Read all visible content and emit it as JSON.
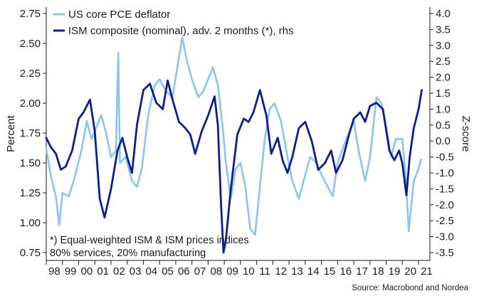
{
  "chart_data": {
    "type": "line",
    "legend_position": "top-left",
    "grid": false,
    "y_left": {
      "label": "Percent",
      "range": [
        0.75,
        2.75
      ],
      "ticks": [
        "2.75",
        "2.50",
        "2.25",
        "2.00",
        "1.75",
        "1.50",
        "1.25",
        "1.00",
        "0.75"
      ]
    },
    "y_right": {
      "label": "Z-score",
      "range": [
        -3.5,
        4.0
      ],
      "ticks": [
        "4.0",
        "3.5",
        "3.0",
        "2.5",
        "2.0",
        "1.5",
        "1.0",
        "0.5",
        "0.0",
        "-0.5",
        "-1.0",
        "-1.5",
        "-2.0",
        "-2.5",
        "-3.0",
        "-3.5"
      ]
    },
    "x_axis": {
      "range": [
        1998.0,
        2021.7
      ],
      "tick_labels": [
        "98",
        "99",
        "00",
        "01",
        "02",
        "03",
        "04",
        "05",
        "06",
        "07",
        "08",
        "09",
        "10",
        "11",
        "12",
        "13",
        "14",
        "15",
        "16",
        "17",
        "18",
        "19",
        "20",
        "21"
      ]
    },
    "series": [
      {
        "name": "US core PCE deflator",
        "axis": "left",
        "color": "#8cc4ec",
        "points": [
          [
            1998.0,
            1.62
          ],
          [
            1998.3,
            1.38
          ],
          [
            1998.6,
            1.22
          ],
          [
            1998.8,
            0.98
          ],
          [
            1999.0,
            1.25
          ],
          [
            1999.4,
            1.22
          ],
          [
            1999.8,
            1.4
          ],
          [
            2000.2,
            1.62
          ],
          [
            2000.5,
            1.85
          ],
          [
            2000.8,
            1.7
          ],
          [
            2001.1,
            1.8
          ],
          [
            2001.4,
            1.9
          ],
          [
            2001.7,
            1.75
          ],
          [
            2002.0,
            1.55
          ],
          [
            2002.3,
            1.6
          ],
          [
            2002.45,
            2.42
          ],
          [
            2002.55,
            1.5
          ],
          [
            2002.9,
            1.55
          ],
          [
            2003.3,
            1.35
          ],
          [
            2003.6,
            1.3
          ],
          [
            2003.9,
            1.45
          ],
          [
            2004.3,
            1.9
          ],
          [
            2004.7,
            2.15
          ],
          [
            2005.0,
            2.2
          ],
          [
            2005.4,
            2.1
          ],
          [
            2005.8,
            2.05
          ],
          [
            2006.1,
            2.3
          ],
          [
            2006.4,
            2.55
          ],
          [
            2006.7,
            2.35
          ],
          [
            2007.0,
            2.2
          ],
          [
            2007.4,
            2.05
          ],
          [
            2007.7,
            2.1
          ],
          [
            2008.0,
            2.2
          ],
          [
            2008.3,
            2.3
          ],
          [
            2008.6,
            2.15
          ],
          [
            2008.9,
            1.8
          ],
          [
            2009.1,
            1.5
          ],
          [
            2009.4,
            1.2
          ],
          [
            2009.7,
            1.45
          ],
          [
            2010.0,
            1.5
          ],
          [
            2010.3,
            1.3
          ],
          [
            2010.6,
            0.95
          ],
          [
            2010.9,
            0.9
          ],
          [
            2011.2,
            1.3
          ],
          [
            2011.5,
            1.7
          ],
          [
            2011.8,
            1.95
          ],
          [
            2012.1,
            2.0
          ],
          [
            2012.5,
            1.85
          ],
          [
            2012.9,
            1.55
          ],
          [
            2013.2,
            1.35
          ],
          [
            2013.6,
            1.2
          ],
          [
            2013.9,
            1.35
          ],
          [
            2014.3,
            1.55
          ],
          [
            2014.7,
            1.5
          ],
          [
            2015.0,
            1.4
          ],
          [
            2015.4,
            1.3
          ],
          [
            2015.7,
            1.22
          ],
          [
            2016.0,
            1.5
          ],
          [
            2016.4,
            1.65
          ],
          [
            2016.7,
            1.75
          ],
          [
            2017.0,
            1.85
          ],
          [
            2017.3,
            1.6
          ],
          [
            2017.7,
            1.35
          ],
          [
            2018.0,
            1.55
          ],
          [
            2018.4,
            2.05
          ],
          [
            2018.7,
            2.0
          ],
          [
            2019.0,
            1.8
          ],
          [
            2019.3,
            1.55
          ],
          [
            2019.6,
            1.7
          ],
          [
            2020.0,
            1.7
          ],
          [
            2020.2,
            1.4
          ],
          [
            2020.4,
            0.93
          ],
          [
            2020.7,
            1.35
          ],
          [
            2021.0,
            1.45
          ],
          [
            2021.15,
            1.53
          ]
        ]
      },
      {
        "name": "ISM composite (nominal), adv. 2 months (*), rhs",
        "axis": "right",
        "color": "#0f1e8c",
        "points": [
          [
            1998.0,
            0.1
          ],
          [
            1998.3,
            -0.2
          ],
          [
            1998.6,
            -0.4
          ],
          [
            1998.9,
            -0.9
          ],
          [
            1999.2,
            -0.8
          ],
          [
            1999.6,
            -0.3
          ],
          [
            2000.0,
            0.7
          ],
          [
            2000.3,
            0.9
          ],
          [
            2000.7,
            1.3
          ],
          [
            2001.0,
            0.3
          ],
          [
            2001.3,
            -1.8
          ],
          [
            2001.6,
            -2.4
          ],
          [
            2002.0,
            -1.5
          ],
          [
            2002.4,
            -0.3
          ],
          [
            2002.7,
            0.1
          ],
          [
            2003.0,
            -0.5
          ],
          [
            2003.3,
            -1.0
          ],
          [
            2003.6,
            0.5
          ],
          [
            2004.0,
            1.6
          ],
          [
            2004.4,
            1.8
          ],
          [
            2004.8,
            1.2
          ],
          [
            2005.2,
            1.0
          ],
          [
            2005.5,
            1.9
          ],
          [
            2005.8,
            1.3
          ],
          [
            2006.2,
            0.6
          ],
          [
            2006.6,
            0.4
          ],
          [
            2006.9,
            0.2
          ],
          [
            2007.2,
            -0.4
          ],
          [
            2007.6,
            0.3
          ],
          [
            2008.0,
            0.8
          ],
          [
            2008.4,
            1.4
          ],
          [
            2008.6,
            0.5
          ],
          [
            2008.8,
            -2.0
          ],
          [
            2008.95,
            -3.5
          ],
          [
            2009.1,
            -3.1
          ],
          [
            2009.4,
            -1.5
          ],
          [
            2009.8,
            0.2
          ],
          [
            2010.2,
            0.7
          ],
          [
            2010.5,
            0.6
          ],
          [
            2010.8,
            0.9
          ],
          [
            2011.2,
            1.6
          ],
          [
            2011.6,
            0.8
          ],
          [
            2011.9,
            -0.4
          ],
          [
            2012.3,
            0.1
          ],
          [
            2012.6,
            -0.6
          ],
          [
            2012.9,
            -1.0
          ],
          [
            2013.2,
            -0.5
          ],
          [
            2013.6,
            0.4
          ],
          [
            2014.0,
            0.6
          ],
          [
            2014.4,
            0.0
          ],
          [
            2014.8,
            -0.9
          ],
          [
            2015.2,
            -0.7
          ],
          [
            2015.6,
            -0.3
          ],
          [
            2015.9,
            -1.0
          ],
          [
            2016.3,
            -0.6
          ],
          [
            2016.7,
            0.2
          ],
          [
            2017.0,
            0.7
          ],
          [
            2017.4,
            0.9
          ],
          [
            2017.7,
            0.6
          ],
          [
            2018.0,
            1.1
          ],
          [
            2018.4,
            1.2
          ],
          [
            2018.8,
            1.0
          ],
          [
            2019.2,
            -0.3
          ],
          [
            2019.5,
            -0.6
          ],
          [
            2019.8,
            -0.3
          ],
          [
            2020.0,
            -0.7
          ],
          [
            2020.25,
            -1.7
          ],
          [
            2020.45,
            -0.5
          ],
          [
            2020.7,
            0.4
          ],
          [
            2021.0,
            1.0
          ],
          [
            2021.2,
            1.6
          ]
        ]
      }
    ],
    "annotations": [
      "*) Equal-weighted ISM & ISM prices indices",
      "80% services, 20% manufacturing"
    ],
    "source": "Source: Macrobond and Nordea"
  }
}
